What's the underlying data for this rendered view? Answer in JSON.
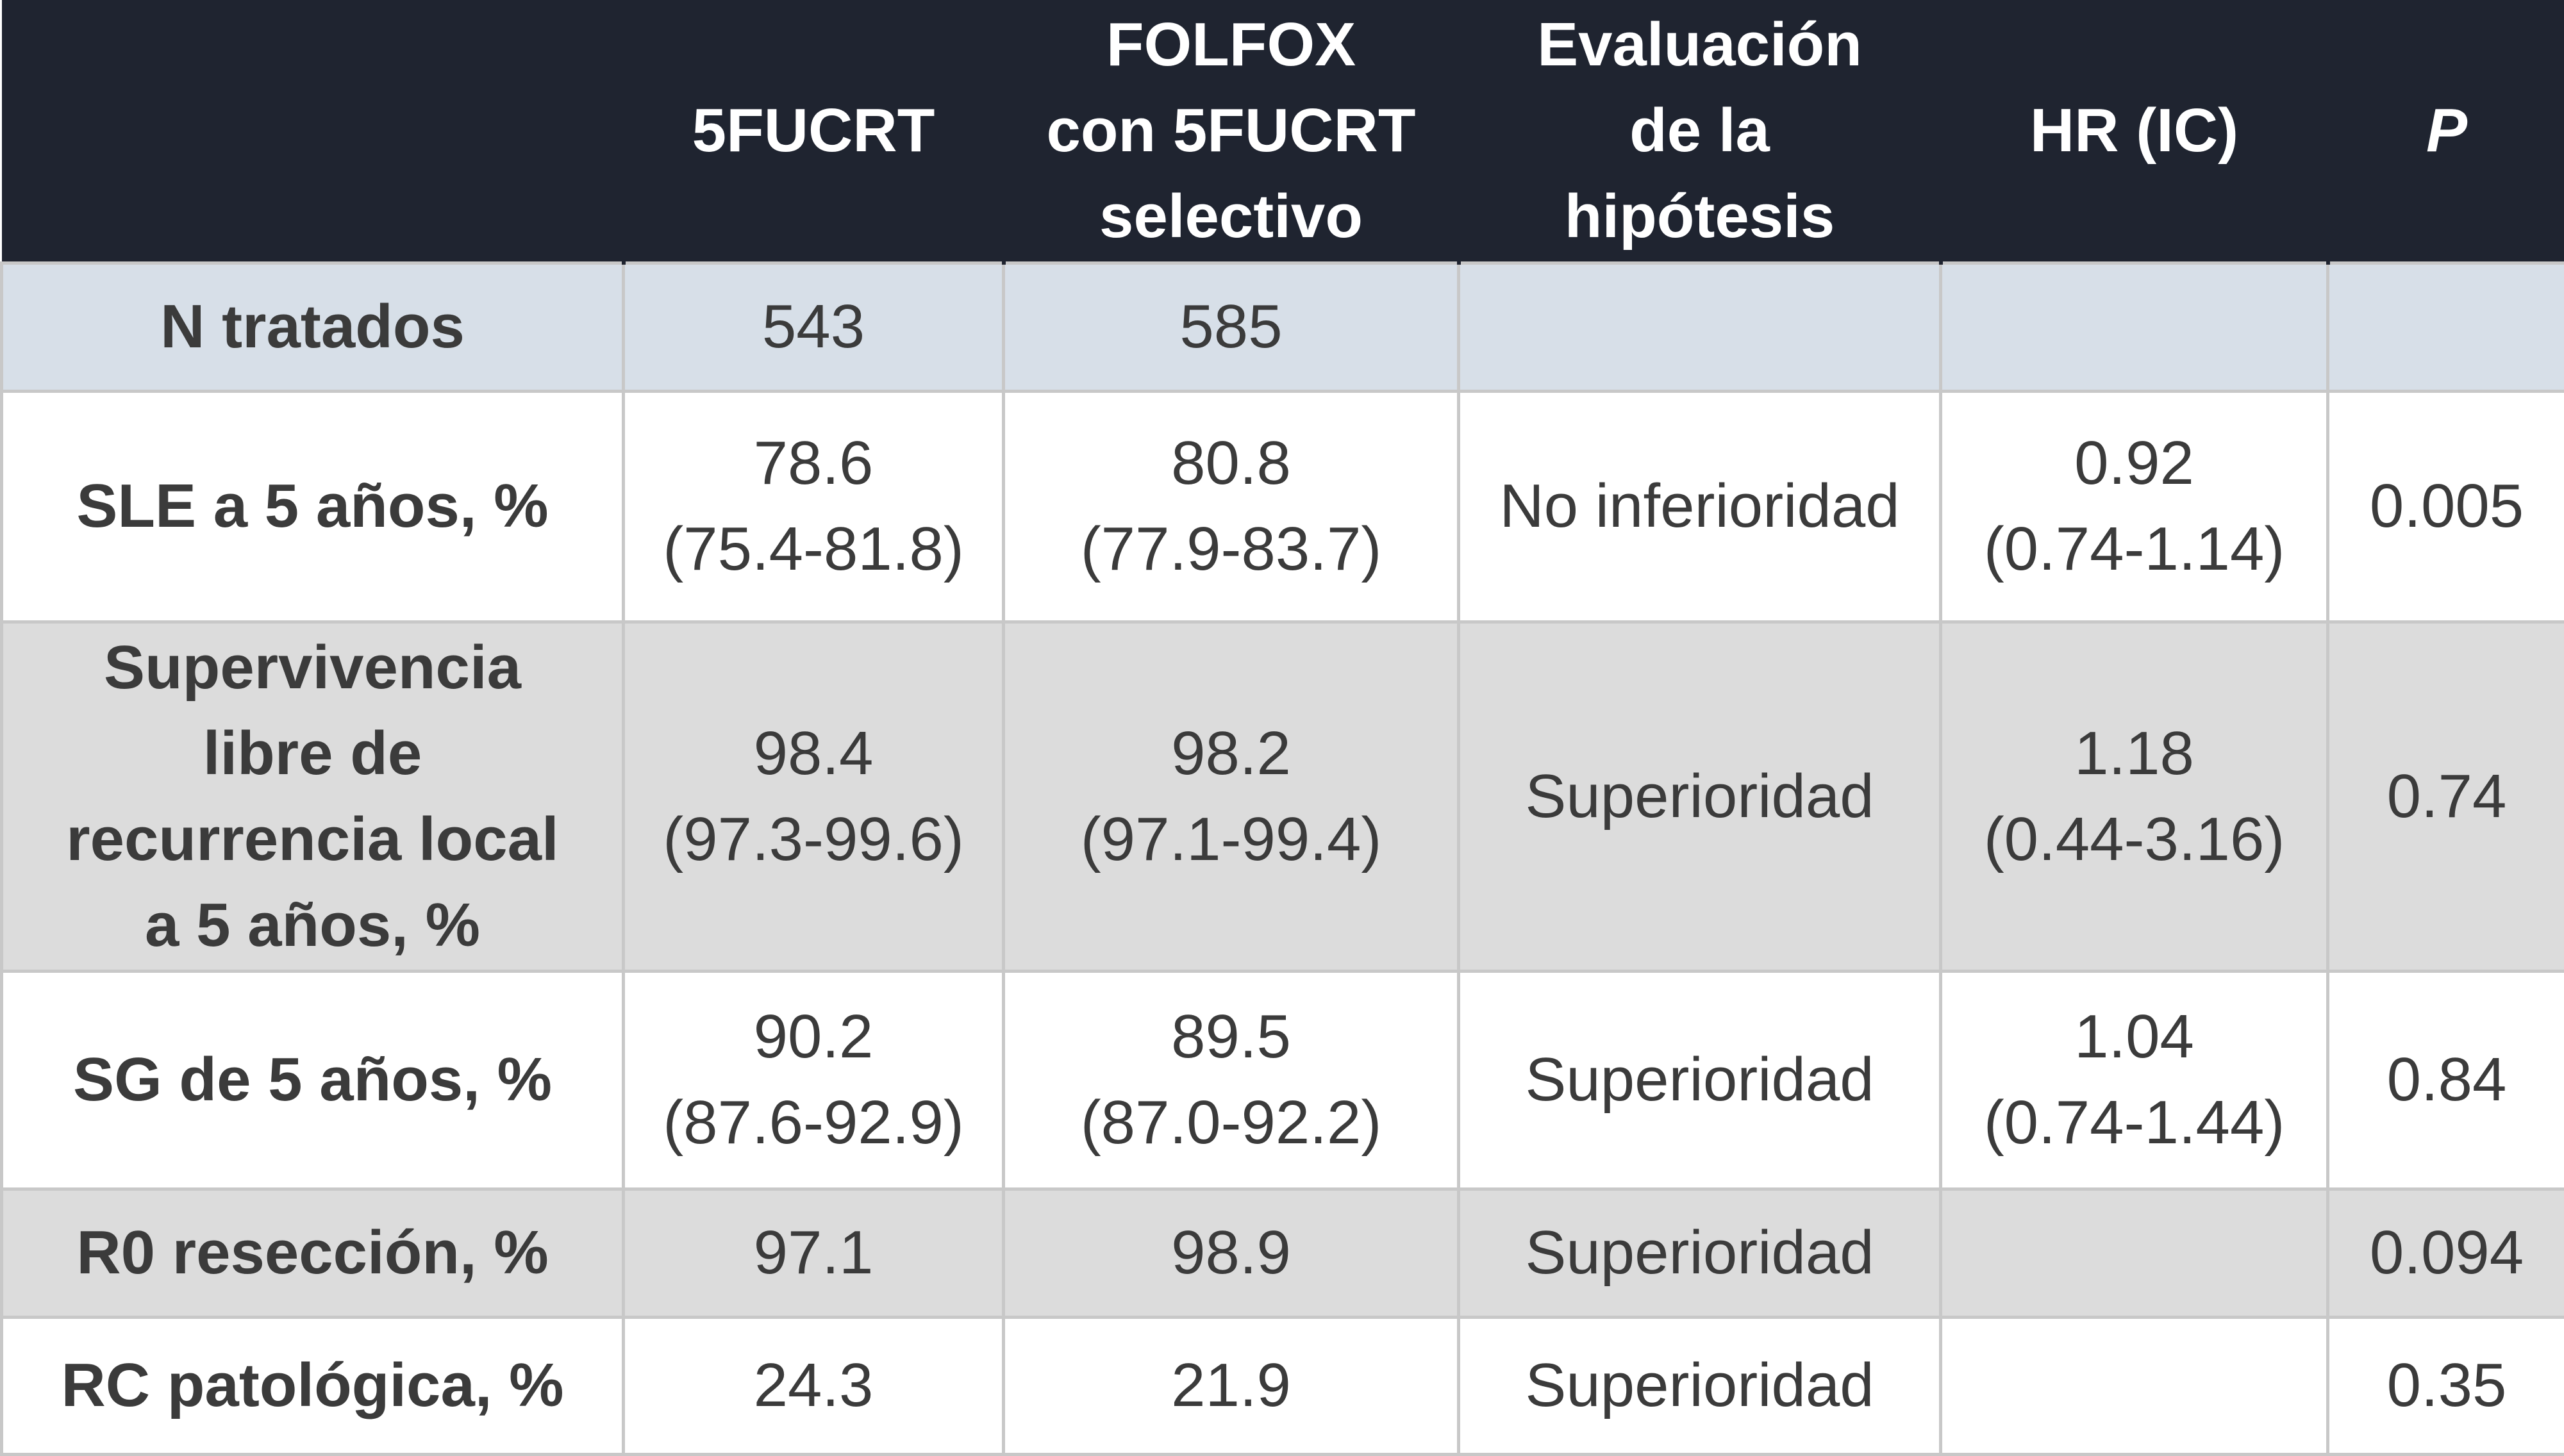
{
  "table": {
    "headers": [
      [
        ""
      ],
      [
        "5FUCRT"
      ],
      [
        "FOLFOX",
        "con 5FUCRT",
        "selectivo"
      ],
      [
        "Evaluación",
        "de la",
        "hipótesis"
      ],
      [
        "HR (IC)"
      ],
      [
        "P"
      ]
    ],
    "rows": [
      {
        "label": [
          "N tratados"
        ],
        "c5fucrt": [
          "543"
        ],
        "folfox": [
          "585"
        ],
        "hypothesis": "",
        "hr": [],
        "p": ""
      },
      {
        "label": [
          "SLE a 5 años, %"
        ],
        "c5fucrt": [
          "78.6",
          "(75.4-81.8)"
        ],
        "folfox": [
          "80.8",
          "(77.9-83.7)"
        ],
        "hypothesis": "No inferioridad",
        "hr": [
          "0.92",
          "(0.74-1.14)"
        ],
        "p": "0.005"
      },
      {
        "label": [
          "Supervivencia",
          "libre de",
          "recurrencia local",
          "a 5 años, %"
        ],
        "c5fucrt": [
          "98.4",
          "(97.3-99.6)"
        ],
        "folfox": [
          "98.2",
          "(97.1-99.4)"
        ],
        "hypothesis": "Superioridad",
        "hr": [
          "1.18",
          "(0.44-3.16)"
        ],
        "p": "0.74"
      },
      {
        "label": [
          "SG de 5 años, %"
        ],
        "c5fucrt": [
          "90.2",
          "(87.6-92.9)"
        ],
        "folfox": [
          "89.5",
          "(87.0-92.2)"
        ],
        "hypothesis": "Superioridad",
        "hr": [
          "1.04",
          "(0.74-1.44)"
        ],
        "p": "0.84"
      },
      {
        "label": [
          "R0 resección, %"
        ],
        "c5fucrt": [
          "97.1"
        ],
        "folfox": [
          "98.9"
        ],
        "hypothesis": "Superioridad",
        "hr": [],
        "p": "0.094"
      },
      {
        "label": [
          "RC patológica, %"
        ],
        "c5fucrt": [
          "24.3"
        ],
        "folfox": [
          "21.9"
        ],
        "hypothesis": "Superioridad",
        "hr": [],
        "p": "0.35"
      }
    ]
  }
}
